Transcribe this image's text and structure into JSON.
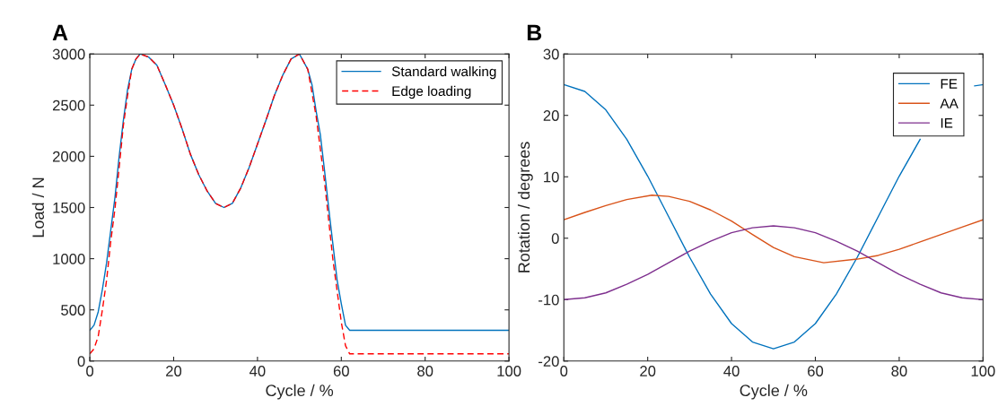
{
  "chart_data": [
    {
      "type": "line",
      "title": "A",
      "xlabel": "Cycle / %",
      "ylabel": "Load / N",
      "xlim": [
        0,
        100
      ],
      "xticks": [
        0,
        20,
        40,
        60,
        80,
        100
      ],
      "ylim": [
        0,
        3000
      ],
      "yticks": [
        0,
        500,
        1000,
        1500,
        2000,
        2500,
        3000
      ],
      "grid": false,
      "legend": "top right",
      "series": [
        {
          "name": "Standard walking",
          "color": "#0072bd",
          "line_style": "solid",
          "x": [
            0,
            1,
            2,
            3,
            4,
            5,
            6,
            7,
            8,
            9,
            10,
            11,
            12,
            14,
            16,
            18,
            20,
            22,
            24,
            26,
            28,
            30,
            32,
            34,
            36,
            38,
            40,
            42,
            44,
            46,
            48,
            50,
            52,
            53,
            54,
            55,
            56,
            57,
            58,
            59,
            60,
            61,
            62,
            100
          ],
          "values": [
            300,
            350,
            480,
            700,
            960,
            1280,
            1600,
            2000,
            2350,
            2650,
            2850,
            2950,
            3000,
            2970,
            2890,
            2700,
            2500,
            2270,
            2020,
            1820,
            1660,
            1540,
            1500,
            1540,
            1690,
            1890,
            2120,
            2350,
            2590,
            2790,
            2950,
            3000,
            2850,
            2700,
            2440,
            2210,
            1860,
            1490,
            1140,
            790,
            560,
            350,
            300,
            300
          ]
        },
        {
          "name": "Edge loading",
          "color": "#ff0000",
          "line_style": "dashed",
          "x": [
            0,
            1,
            2,
            3,
            4,
            5,
            6,
            7,
            8,
            9,
            10,
            11,
            12,
            14,
            16,
            18,
            20,
            22,
            24,
            26,
            28,
            30,
            32,
            34,
            36,
            38,
            40,
            42,
            44,
            46,
            48,
            50,
            52,
            54,
            56,
            58,
            60,
            61,
            62,
            100
          ],
          "values": [
            70,
            120,
            240,
            500,
            790,
            1170,
            1490,
            1890,
            2300,
            2590,
            2850,
            2950,
            3000,
            2970,
            2890,
            2700,
            2500,
            2270,
            2020,
            1820,
            1660,
            1540,
            1500,
            1540,
            1690,
            1890,
            2120,
            2350,
            2590,
            2790,
            2950,
            3000,
            2850,
            2390,
            1750,
            990,
            380,
            150,
            70,
            70
          ]
        }
      ]
    },
    {
      "type": "line",
      "title": "B",
      "xlabel": "Cycle / %",
      "ylabel": "Rotation / degrees",
      "xlim": [
        0,
        100
      ],
      "xticks": [
        0,
        20,
        40,
        60,
        80,
        100
      ],
      "ylim": [
        -20,
        30
      ],
      "yticks": [
        -20,
        -10,
        0,
        10,
        20,
        30
      ],
      "grid": false,
      "legend": "top right",
      "series": [
        {
          "name": "FE",
          "color": "#0072bd",
          "line_style": "solid",
          "x": [
            0,
            5,
            10,
            15,
            20,
            25,
            30,
            35,
            40,
            45,
            50,
            55,
            60,
            65,
            70,
            75,
            80,
            85,
            90,
            95,
            98,
            100
          ],
          "values": [
            25,
            23.9,
            20.9,
            16.1,
            10.1,
            3.5,
            -3.1,
            -9.1,
            -13.9,
            -16.9,
            -18,
            -16.9,
            -13.9,
            -9.1,
            -3.1,
            3.5,
            10.1,
            16.1,
            null,
            null,
            24.8,
            25
          ]
        },
        {
          "name": "AA",
          "color": "#d95319",
          "line_style": "solid",
          "x": [
            0,
            5,
            10,
            15,
            21,
            25,
            30,
            35,
            40,
            45,
            50,
            55,
            62,
            70,
            75,
            80,
            85,
            90,
            95,
            100
          ],
          "values": [
            3,
            4.2,
            5.3,
            6.3,
            7,
            6.8,
            6.0,
            4.6,
            2.8,
            0.6,
            -1.5,
            -3.0,
            -4,
            -3.4,
            -2.8,
            -1.8,
            -0.6,
            0.6,
            1.8,
            3
          ]
        },
        {
          "name": "IE",
          "color": "#7e2f8e",
          "line_style": "solid",
          "x": [
            0,
            5,
            10,
            15,
            20,
            25,
            30,
            35,
            40,
            45,
            50,
            55,
            60,
            65,
            70,
            75,
            80,
            85,
            90,
            95,
            100
          ],
          "values": [
            -10,
            -9.7,
            -8.9,
            -7.5,
            -5.9,
            -4,
            -2.1,
            -0.5,
            0.9,
            1.7,
            2,
            1.7,
            0.9,
            -0.5,
            -2.1,
            -4,
            -5.9,
            -7.5,
            -8.9,
            -9.7,
            -10
          ]
        }
      ]
    }
  ]
}
